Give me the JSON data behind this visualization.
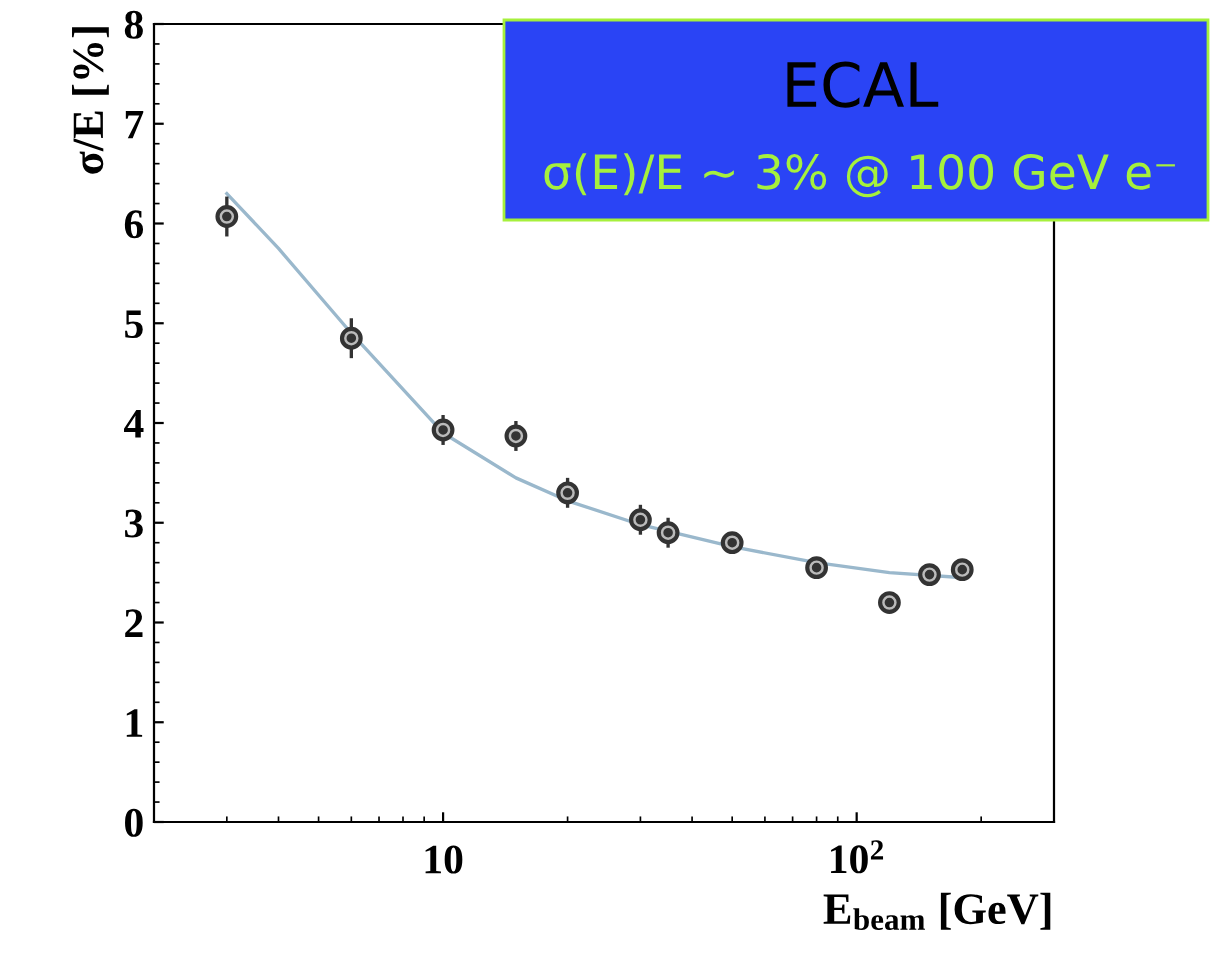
{
  "chart_data": {
    "type": "scatter",
    "xlabel": "E$_{beam}$ [GeV]",
    "ylabel": "σ/E [%]",
    "log": "x",
    "xlim": [
      2,
      300
    ],
    "ylim": [
      0,
      8
    ],
    "xticks": [
      10,
      {
        "value": 100,
        "label": "10$^{2}$"
      }
    ],
    "yticks": [
      0,
      1,
      2,
      3,
      4,
      5,
      6,
      7,
      8
    ],
    "grid": false,
    "legend": false,
    "annotations": [
      "ECAL",
      "σ(E)/E ~ 3% @ 100 GeV e⁻"
    ],
    "series": [
      {
        "marker": "circle",
        "color": "#333333",
        "x": [
          3,
          6,
          10,
          15,
          20,
          30,
          35,
          50,
          80,
          120,
          150,
          180
        ],
        "values": [
          6.07,
          4.85,
          3.93,
          3.87,
          3.3,
          3.03,
          2.9,
          2.8,
          2.55,
          2.2,
          2.48,
          2.53
        ],
        "errors": [
          0.2,
          0.2,
          0.15,
          0.15,
          0.15,
          0.15,
          0.15,
          0.1,
          0.1,
          0.08,
          0.08,
          0.08
        ]
      },
      {
        "type": "line",
        "marker": "none",
        "color": "#9ab8cc",
        "x": [
          3,
          4,
          6,
          10,
          15,
          20,
          30,
          50,
          80,
          120,
          180
        ],
        "values": [
          6.3,
          5.75,
          4.9,
          3.9,
          3.45,
          3.22,
          2.98,
          2.76,
          2.6,
          2.5,
          2.45
        ]
      }
    ]
  }
}
